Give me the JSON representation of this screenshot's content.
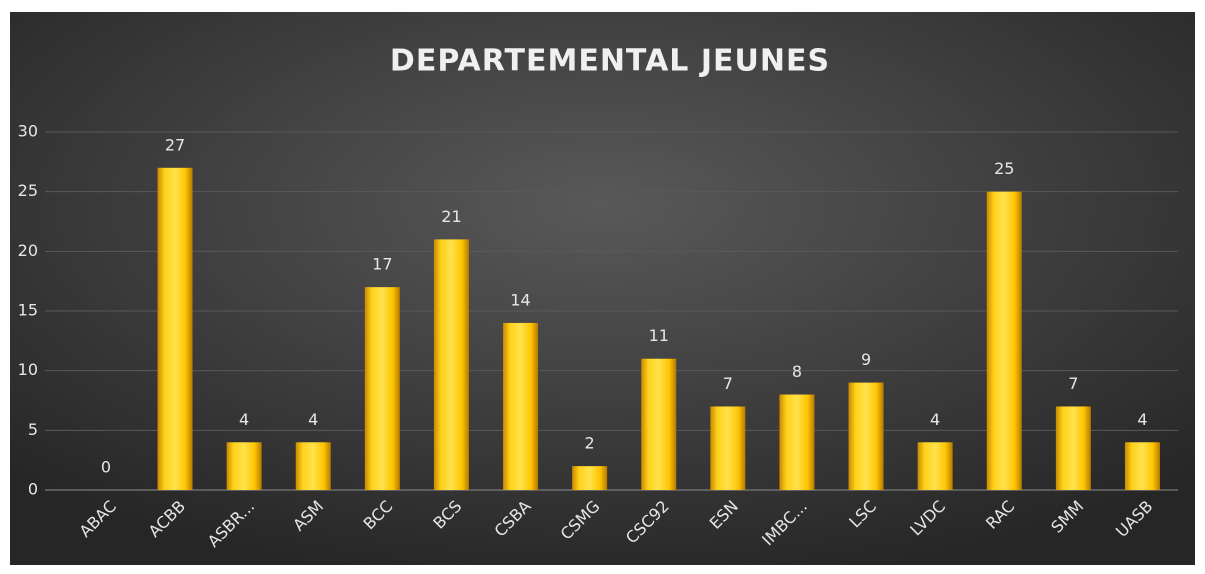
{
  "chart_data": {
    "type": "bar",
    "title": "DEPARTEMENTAL JEUNES",
    "categories": [
      "ABAC",
      "ACBB",
      "ASBR...",
      "ASM",
      "BCC",
      "BCS",
      "CSBA",
      "CSMG",
      "CSC92",
      "ESN",
      "IMBC...",
      "LSC",
      "LVDC",
      "RAC",
      "SMM",
      "UASB"
    ],
    "values": [
      0,
      27,
      4,
      4,
      17,
      21,
      14,
      2,
      11,
      7,
      8,
      9,
      4,
      25,
      7,
      4
    ],
    "color": "#ffc000",
    "ylim": [
      0,
      30
    ],
    "yticks": [
      0,
      5,
      10,
      15,
      20,
      25,
      30
    ],
    "grid": true
  }
}
